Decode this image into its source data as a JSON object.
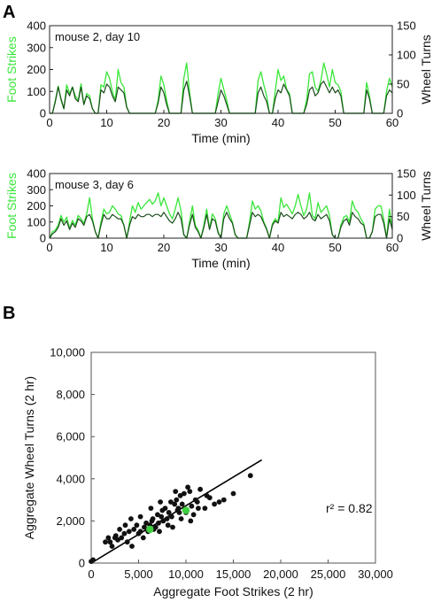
{
  "figure": {
    "panel_labels": [
      "A",
      "B"
    ]
  },
  "colors": {
    "foot_strikes": "#39e639",
    "wheel_turns": "#1a4d1a",
    "wheel_turns_light": "#333333",
    "scatter_point": "#111111",
    "highlight_point": "#3fd13f",
    "fit_line": "#000000",
    "axis": "#222222"
  },
  "chart_data": [
    {
      "type": "line",
      "panel": "A",
      "annotation": "mouse 2, day 10",
      "xlabel": "Time (min)",
      "ylabel_left": "Foot Strikes",
      "ylabel_right": "Wheel Turns",
      "xlim": [
        0,
        60
      ],
      "ylim_left": [
        0,
        400
      ],
      "ylim_right": [
        0,
        150
      ],
      "x_ticks": [
        0,
        10,
        20,
        30,
        40,
        50,
        60
      ],
      "y_ticks_left": [
        0,
        100,
        200,
        300,
        400
      ],
      "y_ticks_right": [
        0,
        50,
        100,
        150
      ],
      "grid": false,
      "x": [
        0,
        0.5,
        1,
        1.5,
        2,
        2.5,
        3,
        3.5,
        4,
        4.5,
        5,
        5.5,
        6,
        6.5,
        7,
        7.5,
        8,
        8.5,
        9,
        9.5,
        10,
        10.5,
        11,
        11.5,
        12,
        12.5,
        13,
        13.5,
        14,
        14.5,
        15,
        15.5,
        16,
        16.5,
        17,
        17.5,
        18,
        18.5,
        19,
        19.5,
        20,
        20.5,
        21,
        21.5,
        22,
        22.5,
        23,
        23.5,
        24,
        24.5,
        25,
        25.5,
        26,
        26.5,
        27,
        27.5,
        28,
        28.5,
        29,
        29.5,
        30,
        30.5,
        31,
        31.5,
        32,
        32.5,
        33,
        33.5,
        34,
        34.5,
        35,
        35.5,
        36,
        36.5,
        37,
        37.5,
        38,
        38.5,
        39,
        39.5,
        40,
        40.5,
        41,
        41.5,
        42,
        42.5,
        43,
        43.5,
        44,
        44.5,
        45,
        45.5,
        46,
        46.5,
        47,
        47.5,
        48,
        48.5,
        49,
        49.5,
        50,
        50.5,
        51,
        51.5,
        52,
        52.5,
        53,
        53.5,
        54,
        54.5,
        55,
        55.5,
        56,
        56.5,
        57,
        57.5,
        58,
        58.5,
        59,
        59.5,
        60
      ],
      "series": [
        {
          "name": "Foot Strikes",
          "axis": "left",
          "color": "#39e639",
          "values": [
            0,
            0,
            60,
            125,
            60,
            20,
            130,
            90,
            120,
            80,
            60,
            135,
            40,
            90,
            80,
            20,
            0,
            0,
            130,
            120,
            190,
            160,
            100,
            60,
            200,
            140,
            120,
            30,
            0,
            0,
            0,
            0,
            0,
            0,
            0,
            0,
            0,
            0,
            60,
            170,
            130,
            60,
            0,
            0,
            0,
            0,
            0,
            160,
            230,
            100,
            0,
            0,
            0,
            0,
            0,
            0,
            0,
            0,
            0,
            90,
            160,
            110,
            60,
            0,
            0,
            0,
            0,
            0,
            0,
            0,
            0,
            0,
            0,
            150,
            190,
            130,
            80,
            0,
            0,
            100,
            200,
            150,
            170,
            110,
            90,
            0,
            0,
            0,
            0,
            0,
            60,
            180,
            190,
            120,
            100,
            150,
            230,
            180,
            120,
            200,
            140,
            130,
            100,
            0,
            0,
            0,
            0,
            0,
            0,
            0,
            0,
            140,
            80,
            0,
            0,
            0,
            0,
            0,
            100,
            160,
            120
          ]
        },
        {
          "name": "Wheel Turns",
          "axis": "right",
          "color": "#1a4d1a",
          "values": [
            0,
            0,
            20,
            45,
            25,
            8,
            40,
            30,
            45,
            25,
            20,
            45,
            15,
            30,
            25,
            8,
            0,
            0,
            40,
            35,
            50,
            45,
            30,
            20,
            45,
            40,
            35,
            10,
            0,
            0,
            0,
            0,
            0,
            0,
            0,
            0,
            0,
            0,
            18,
            45,
            35,
            15,
            0,
            0,
            0,
            0,
            0,
            40,
            55,
            30,
            0,
            0,
            0,
            0,
            0,
            0,
            0,
            0,
            0,
            20,
            40,
            30,
            15,
            0,
            0,
            0,
            0,
            0,
            0,
            0,
            0,
            0,
            0,
            35,
            45,
            30,
            20,
            0,
            0,
            25,
            40,
            35,
            50,
            40,
            30,
            0,
            0,
            0,
            0,
            0,
            15,
            40,
            45,
            30,
            35,
            50,
            55,
            45,
            35,
            45,
            35,
            40,
            30,
            0,
            0,
            0,
            0,
            0,
            0,
            0,
            0,
            40,
            25,
            0,
            0,
            0,
            0,
            0,
            30,
            40,
            35
          ]
        }
      ]
    },
    {
      "type": "line",
      "panel": "A",
      "annotation": "mouse 3, day 6",
      "xlabel": "Time (min)",
      "ylabel_left": "Foot Strikes",
      "ylabel_right": "Wheel Turns",
      "xlim": [
        0,
        60
      ],
      "ylim_left": [
        0,
        400
      ],
      "ylim_right": [
        0,
        150
      ],
      "x_ticks": [
        0,
        10,
        20,
        30,
        40,
        50,
        60
      ],
      "y_ticks_left": [
        0,
        100,
        200,
        300,
        400
      ],
      "y_ticks_right": [
        0,
        50,
        100,
        150
      ],
      "grid": false,
      "x": [
        0,
        0.5,
        1,
        1.5,
        2,
        2.5,
        3,
        3.5,
        4,
        4.5,
        5,
        5.5,
        6,
        6.5,
        7,
        7.5,
        8,
        8.5,
        9,
        9.5,
        10,
        10.5,
        11,
        11.5,
        12,
        12.5,
        13,
        13.5,
        14,
        14.5,
        15,
        15.5,
        16,
        16.5,
        17,
        17.5,
        18,
        18.5,
        19,
        19.5,
        20,
        20.5,
        21,
        21.5,
        22,
        22.5,
        23,
        23.5,
        24,
        24.5,
        25,
        25.5,
        26,
        26.5,
        27,
        27.5,
        28,
        28.5,
        29,
        29.5,
        30,
        30.5,
        31,
        31.5,
        32,
        32.5,
        33,
        33.5,
        34,
        34.5,
        35,
        35.5,
        36,
        36.5,
        37,
        37.5,
        38,
        38.5,
        39,
        39.5,
        40,
        40.5,
        41,
        41.5,
        42,
        42.5,
        43,
        43.5,
        44,
        44.5,
        45,
        45.5,
        46,
        46.5,
        47,
        47.5,
        48,
        48.5,
        49,
        49.5,
        50,
        50.5,
        51,
        51.5,
        52,
        52.5,
        53,
        53.5,
        54,
        54.5,
        55,
        55.5,
        56,
        56.5,
        57,
        57.5,
        58,
        58.5,
        59,
        59.5,
        60
      ],
      "series": [
        {
          "name": "Foot Strikes",
          "axis": "left",
          "color": "#39e639",
          "values": [
            0,
            40,
            50,
            80,
            140,
            100,
            130,
            60,
            110,
            80,
            140,
            120,
            90,
            150,
            250,
            120,
            40,
            0,
            100,
            180,
            150,
            160,
            200,
            180,
            150,
            140,
            80,
            0,
            100,
            200,
            160,
            220,
            180,
            200,
            220,
            240,
            210,
            230,
            280,
            200,
            250,
            200,
            150,
            120,
            180,
            250,
            170,
            20,
            0,
            100,
            200,
            80,
            50,
            0,
            80,
            180,
            60,
            150,
            120,
            40,
            0,
            150,
            200,
            150,
            100,
            20,
            0,
            0,
            0,
            0,
            100,
            230,
            180,
            200,
            170,
            100,
            60,
            0,
            90,
            120,
            100,
            250,
            190,
            210,
            180,
            150,
            200,
            270,
            200,
            140,
            180,
            280,
            140,
            120,
            220,
            160,
            180,
            200,
            140,
            20,
            0,
            0,
            80,
            130,
            140,
            100,
            230,
            180,
            160,
            120,
            90,
            0,
            0,
            40,
            180,
            200,
            200,
            120,
            0,
            180,
            60
          ]
        },
        {
          "name": "Wheel Turns",
          "axis": "right",
          "color": "#1a4d1a",
          "values": [
            0,
            10,
            15,
            25,
            45,
            30,
            40,
            20,
            35,
            25,
            45,
            40,
            30,
            50,
            55,
            40,
            15,
            0,
            30,
            55,
            45,
            45,
            55,
            50,
            45,
            45,
            30,
            0,
            30,
            50,
            45,
            55,
            50,
            50,
            55,
            55,
            50,
            55,
            55,
            50,
            60,
            50,
            40,
            35,
            45,
            60,
            45,
            8,
            0,
            30,
            55,
            25,
            15,
            0,
            25,
            55,
            20,
            45,
            40,
            12,
            0,
            45,
            60,
            45,
            35,
            8,
            0,
            0,
            0,
            0,
            30,
            60,
            50,
            55,
            50,
            35,
            20,
            0,
            30,
            40,
            35,
            60,
            50,
            55,
            50,
            45,
            55,
            60,
            55,
            45,
            50,
            60,
            45,
            40,
            55,
            45,
            50,
            55,
            40,
            8,
            0,
            0,
            25,
            40,
            45,
            30,
            60,
            50,
            45,
            35,
            30,
            0,
            0,
            15,
            50,
            55,
            55,
            35,
            0,
            45,
            20
          ]
        }
      ]
    },
    {
      "type": "scatter",
      "panel": "B",
      "xlabel": "Aggregate Foot Strikes (2 hr)",
      "ylabel": "Aggregate Wheel Turns (2 hr)",
      "xlim": [
        0,
        30000
      ],
      "ylim": [
        0,
        10000
      ],
      "x_ticks": [
        0,
        5000,
        10000,
        15000,
        20000,
        25000,
        30000
      ],
      "x_tick_labels": [
        "0",
        "5,000",
        "10,000",
        "15,000",
        "20,000",
        "25,000",
        "30,000"
      ],
      "y_ticks": [
        0,
        2000,
        4000,
        6000,
        8000,
        10000
      ],
      "y_tick_labels": [
        "0",
        "2,000",
        "4,000",
        "6,000",
        "8,000",
        "10,000"
      ],
      "grid": false,
      "annotation": "r² = 0.82",
      "fit_line": {
        "x": [
          0,
          18000
        ],
        "y": [
          0,
          4900
        ]
      },
      "points": [
        [
          0,
          80
        ],
        [
          200,
          150
        ],
        [
          1500,
          1000
        ],
        [
          1800,
          1200
        ],
        [
          2000,
          1000
        ],
        [
          2200,
          800
        ],
        [
          2500,
          1200
        ],
        [
          2600,
          1300
        ],
        [
          2800,
          1100
        ],
        [
          3000,
          1600
        ],
        [
          3200,
          1200
        ],
        [
          3500,
          1400
        ],
        [
          3800,
          1000
        ],
        [
          4000,
          1500
        ],
        [
          4200,
          2100
        ],
        [
          4500,
          1600
        ],
        [
          4800,
          1800
        ],
        [
          5000,
          1400
        ],
        [
          5200,
          2200
        ],
        [
          5500,
          1200
        ],
        [
          5600,
          1700
        ],
        [
          5800,
          1900
        ],
        [
          6000,
          1500
        ],
        [
          6200,
          1800
        ],
        [
          6400,
          2000
        ],
        [
          6500,
          2100
        ],
        [
          6600,
          1600
        ],
        [
          6800,
          1700
        ],
        [
          7000,
          2300
        ],
        [
          7100,
          1900
        ],
        [
          7200,
          1500
        ],
        [
          7400,
          2200
        ],
        [
          7500,
          2500
        ],
        [
          7600,
          2000
        ],
        [
          7800,
          2600
        ],
        [
          8000,
          2100
        ],
        [
          8100,
          1800
        ],
        [
          8200,
          2400
        ],
        [
          8400,
          2900
        ],
        [
          8500,
          2200
        ],
        [
          8600,
          1700
        ],
        [
          8800,
          2800
        ],
        [
          9000,
          3000
        ],
        [
          9100,
          2500
        ],
        [
          9200,
          2600
        ],
        [
          9400,
          3200
        ],
        [
          9500,
          2100
        ],
        [
          9600,
          2800
        ],
        [
          9800,
          3300
        ],
        [
          10000,
          2400
        ],
        [
          10200,
          3600
        ],
        [
          10400,
          3400
        ],
        [
          10600,
          2700
        ],
        [
          10800,
          2300
        ],
        [
          11000,
          3000
        ],
        [
          11200,
          2900
        ],
        [
          11500,
          3500
        ],
        [
          12000,
          2600
        ],
        [
          12500,
          3100
        ],
        [
          13000,
          2800
        ],
        [
          13500,
          2900
        ],
        [
          14000,
          3000
        ],
        [
          15000,
          3300
        ],
        [
          16800,
          4150
        ],
        [
          5200,
          1500
        ],
        [
          6300,
          2600
        ],
        [
          7300,
          2900
        ],
        [
          9300,
          2400
        ],
        [
          10500,
          2000
        ],
        [
          11300,
          2600
        ],
        [
          8900,
          3400
        ],
        [
          4300,
          800
        ],
        [
          3600,
          1800
        ],
        [
          12200,
          3200
        ]
      ],
      "highlight_points": [
        [
          6200,
          1600
        ],
        [
          10000,
          2500
        ]
      ]
    }
  ]
}
